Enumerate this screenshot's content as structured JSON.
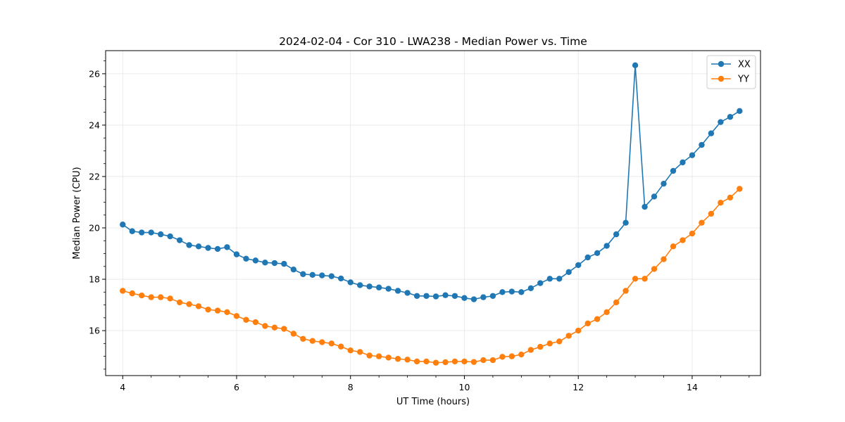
{
  "chart_data": {
    "type": "line",
    "title": "2024-02-04 - Cor 310 - LWA238 - Median Power vs. Time",
    "xlabel": "UT Time (hours)",
    "ylabel": "Median Power (CPU)",
    "xlim": [
      3.7,
      15.2
    ],
    "ylim": [
      14.25,
      26.9
    ],
    "xticks": [
      4,
      6,
      8,
      10,
      12,
      14
    ],
    "xtick_labels": [
      "4",
      "6",
      "8",
      "10",
      "12",
      "14"
    ],
    "yticks": [
      16,
      18,
      20,
      22,
      24,
      26
    ],
    "ytick_labels": [
      "16",
      "18",
      "20",
      "22",
      "24",
      "26"
    ],
    "grid": true,
    "legend_position": "top-right",
    "x": [
      4.0,
      4.167,
      4.333,
      4.5,
      4.667,
      4.833,
      5.0,
      5.167,
      5.333,
      5.5,
      5.667,
      5.833,
      6.0,
      6.167,
      6.333,
      6.5,
      6.667,
      6.833,
      7.0,
      7.167,
      7.333,
      7.5,
      7.667,
      7.833,
      8.0,
      8.167,
      8.333,
      8.5,
      8.667,
      8.833,
      9.0,
      9.167,
      9.333,
      9.5,
      9.667,
      9.833,
      10.0,
      10.167,
      10.333,
      10.5,
      10.667,
      10.833,
      11.0,
      11.167,
      11.333,
      11.5,
      11.667,
      11.833,
      12.0,
      12.167,
      12.333,
      12.5,
      12.667,
      12.833,
      13.0,
      13.167,
      13.333,
      13.5,
      13.667,
      13.833,
      14.0,
      14.167,
      14.333,
      14.5,
      14.667,
      14.833
    ],
    "series": [
      {
        "name": "XX",
        "color": "#1f77b4",
        "values": [
          20.13,
          19.87,
          19.82,
          19.82,
          19.75,
          19.67,
          19.52,
          19.33,
          19.28,
          19.22,
          19.18,
          19.25,
          18.97,
          18.8,
          18.73,
          18.65,
          18.63,
          18.6,
          18.38,
          18.2,
          18.17,
          18.15,
          18.12,
          18.03,
          17.88,
          17.77,
          17.72,
          17.68,
          17.63,
          17.55,
          17.47,
          17.35,
          17.35,
          17.33,
          17.38,
          17.35,
          17.27,
          17.22,
          17.3,
          17.35,
          17.5,
          17.52,
          17.5,
          17.65,
          17.85,
          18.02,
          18.02,
          18.28,
          18.55,
          18.85,
          19.02,
          19.3,
          19.75,
          20.2,
          26.33,
          20.82,
          21.22,
          21.72,
          22.22,
          22.55,
          22.83,
          23.23,
          23.68,
          24.12,
          24.32,
          24.55
        ]
      },
      {
        "name": "YY",
        "color": "#ff7f0e",
        "values": [
          17.55,
          17.45,
          17.37,
          17.3,
          17.3,
          17.25,
          17.1,
          17.03,
          16.95,
          16.82,
          16.78,
          16.72,
          16.57,
          16.42,
          16.33,
          16.18,
          16.12,
          16.07,
          15.88,
          15.68,
          15.6,
          15.55,
          15.5,
          15.38,
          15.23,
          15.17,
          15.03,
          15.0,
          14.95,
          14.9,
          14.87,
          14.8,
          14.8,
          14.75,
          14.77,
          14.8,
          14.8,
          14.78,
          14.85,
          14.85,
          14.98,
          15.0,
          15.07,
          15.25,
          15.37,
          15.5,
          15.58,
          15.8,
          16.0,
          16.28,
          16.45,
          16.72,
          17.1,
          17.55,
          18.02,
          18.02,
          18.4,
          18.78,
          19.28,
          19.52,
          19.78,
          20.2,
          20.55,
          20.98,
          21.18,
          21.52
        ]
      }
    ]
  }
}
